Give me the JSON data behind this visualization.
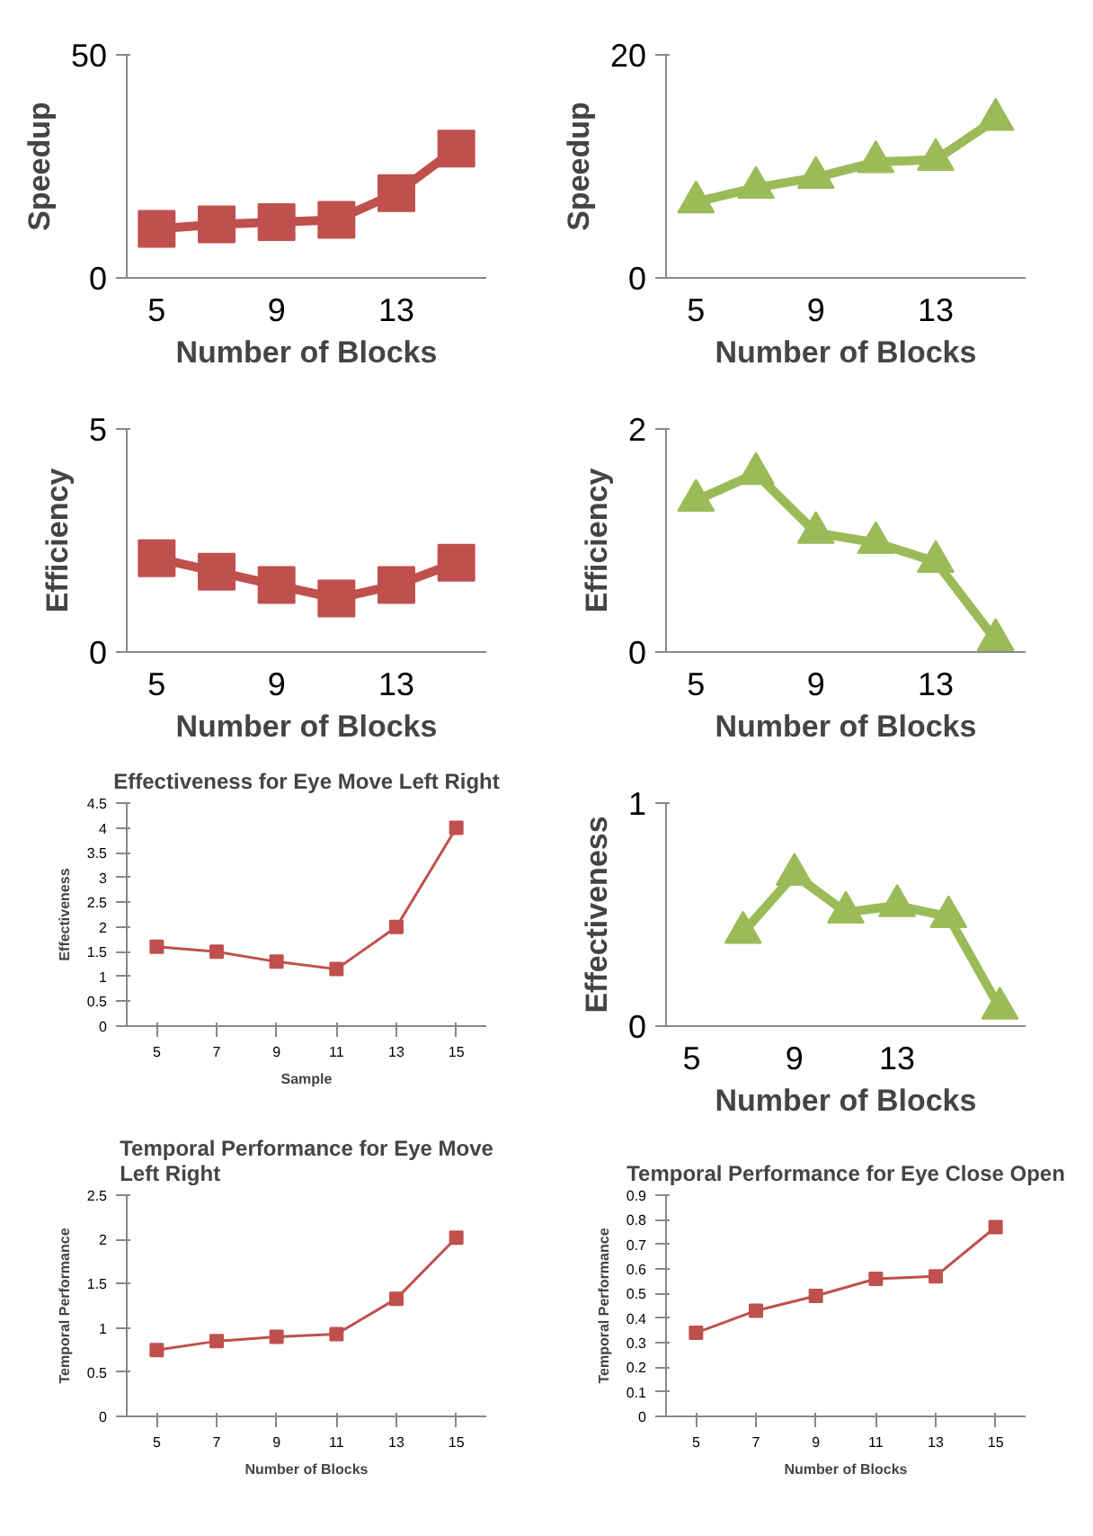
{
  "chart_data": [
    {
      "type": "line",
      "categories": [
        "5",
        null,
        "9",
        null,
        "13",
        null
      ],
      "xlabel": "Number of Blocks",
      "ylabel": "Speedup",
      "ylim": [
        0,
        50
      ],
      "yticks": [
        0,
        50
      ],
      "marker": "square",
      "series": [
        {
          "color": "#c0504d",
          "values": [
            11,
            12,
            12.5,
            13,
            19,
            29
          ]
        }
      ]
    },
    {
      "type": "line",
      "categories": [
        "5",
        null,
        "9",
        null,
        "13",
        null
      ],
      "xlabel": "Number of Blocks",
      "ylabel": "Speedup",
      "ylim": [
        0,
        20
      ],
      "yticks": [
        0,
        20
      ],
      "marker": "triangle",
      "series": [
        {
          "color": "#9bbb59",
          "values": [
            6.8,
            8.1,
            9,
            10.4,
            10.6,
            14.2
          ]
        }
      ]
    },
    {
      "type": "line",
      "categories": [
        "5",
        null,
        "9",
        null,
        "13",
        null
      ],
      "xlabel": "Number of Blocks",
      "ylabel": "Efficiency",
      "ylim": [
        0,
        5
      ],
      "yticks": [
        0,
        5
      ],
      "marker": "square",
      "series": [
        {
          "color": "#c0504d",
          "values": [
            2.1,
            1.8,
            1.5,
            1.2,
            1.5,
            2.0
          ]
        }
      ]
    },
    {
      "type": "line",
      "categories": [
        "5",
        null,
        "9",
        null,
        "13",
        null
      ],
      "xlabel": "Number of Blocks",
      "ylabel": "Efficiency",
      "ylim": [
        0,
        2
      ],
      "yticks": [
        0,
        2
      ],
      "marker": "triangle",
      "series": [
        {
          "color": "#9bbb59",
          "values": [
            1.36,
            1.6,
            1.07,
            0.98,
            0.81,
            0.11
          ]
        }
      ]
    },
    {
      "type": "line",
      "title": "Effectiveness for Eye Move Left Right",
      "categories": [
        "5",
        "7",
        "9",
        "11",
        "13",
        "15"
      ],
      "xlabel": "Sample",
      "ylabel": "Effectiveness",
      "ylim": [
        0,
        4.5
      ],
      "yticks": [
        0,
        0.5,
        1,
        1.5,
        2,
        2.5,
        3,
        3.5,
        4,
        4.5
      ],
      "marker": "square",
      "series": [
        {
          "color": "#c0504d",
          "values": [
            1.6,
            1.5,
            1.3,
            1.15,
            2.0,
            4.0
          ]
        }
      ]
    },
    {
      "type": "line",
      "categories": [
        "5",
        null,
        "9",
        null,
        "13",
        null,
        null
      ],
      "xlabel": "Number of Blocks",
      "ylabel": "Effectiveness",
      "ylim": [
        0,
        1
      ],
      "yticks": [
        0,
        1
      ],
      "marker": "triangle",
      "series": [
        {
          "color": "#9bbb59",
          "values": [
            null,
            0.42,
            0.68,
            0.51,
            0.54,
            0.49,
            0.08
          ]
        }
      ]
    },
    {
      "type": "line",
      "title": "Temporal Performance for Eye Move Left Right",
      "categories": [
        "5",
        "7",
        "9",
        "11",
        "13",
        "15"
      ],
      "xlabel": "Number of Blocks",
      "ylabel": "Temporal Performance",
      "ylim": [
        0,
        2.5
      ],
      "yticks": [
        0,
        0.5,
        1,
        1.5,
        2,
        2.5
      ],
      "marker": "square",
      "series": [
        {
          "color": "#c0504d",
          "values": [
            0.75,
            0.85,
            0.9,
            0.93,
            1.33,
            2.02
          ]
        }
      ]
    },
    {
      "type": "line",
      "title": "Temporal Performance for Eye Close Open",
      "categories": [
        "5",
        "7",
        "9",
        "11",
        "13",
        "15"
      ],
      "xlabel": "Number of Blocks",
      "ylabel": "Temporal Performance",
      "ylim": [
        0,
        0.9
      ],
      "yticks": [
        0,
        0.1,
        0.2,
        0.3,
        0.4,
        0.5,
        0.6,
        0.7,
        0.8,
        0.9
      ],
      "marker": "square",
      "series": [
        {
          "color": "#c0504d",
          "values": [
            0.34,
            0.43,
            0.49,
            0.56,
            0.57,
            0.77
          ]
        }
      ]
    }
  ]
}
